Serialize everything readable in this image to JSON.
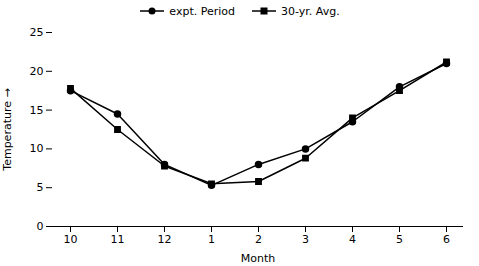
{
  "chart_data": {
    "type": "line",
    "categories": [
      "10",
      "11",
      "12",
      "1",
      "2",
      "3",
      "4",
      "5",
      "6"
    ],
    "series": [
      {
        "name": "expt. Period",
        "color": "#000000",
        "marker": "circle",
        "values": [
          17.5,
          14.5,
          8.0,
          5.3,
          8.0,
          10.0,
          13.5,
          18.0,
          21.0
        ]
      },
      {
        "name": "30-yr. Avg.",
        "color": "#000000",
        "marker": "square",
        "values": [
          17.8,
          12.5,
          7.8,
          5.5,
          5.8,
          8.8,
          14.0,
          17.5,
          21.2
        ]
      }
    ],
    "xlabel": "Month",
    "ylabel": "Temperature",
    "ylim": [
      0,
      25
    ],
    "yticks": [
      0,
      5,
      10,
      15,
      20,
      25
    ],
    "grid": false,
    "legend": "top"
  }
}
